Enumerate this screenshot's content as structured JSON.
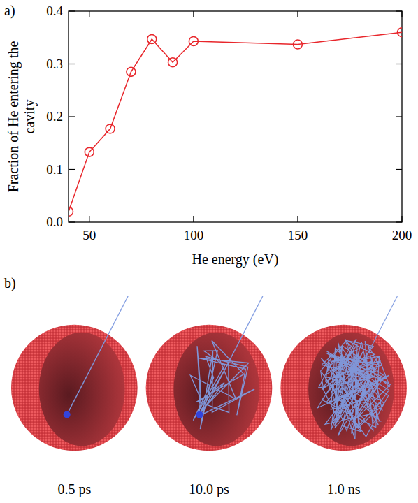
{
  "chart_data": {
    "type": "line",
    "panel": "a)",
    "x_label": "He energy (eV)",
    "y_label": "Fraction of He entering the cavity",
    "x": [
      40,
      50,
      60,
      70,
      80,
      90,
      100,
      150,
      200
    ],
    "values": [
      0.02,
      0.133,
      0.177,
      0.285,
      0.347,
      0.303,
      0.343,
      0.337,
      0.36
    ],
    "color": "#e8262b",
    "marker": "circle",
    "xlim": [
      40,
      200
    ],
    "xticks": [
      50,
      100,
      150,
      200
    ],
    "ylim": [
      0,
      0.4
    ],
    "yticks": [
      {
        "value": 0,
        "label": "0.0"
      },
      0.1,
      0.2,
      0.3,
      0.4
    ],
    "grid": false
  },
  "figure_b": {
    "panel": "b)",
    "captions": [
      "0.5 ps",
      "10.0 ps",
      "1.0 ns"
    ]
  }
}
